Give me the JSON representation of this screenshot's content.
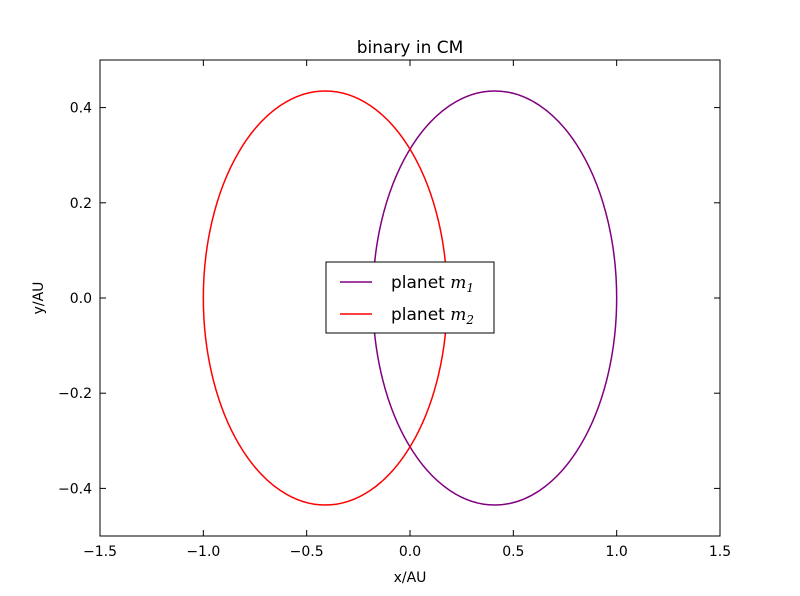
{
  "chart_data": {
    "type": "line",
    "title": "binary in CM",
    "xlabel": "x/AU",
    "ylabel": "y/AU",
    "xlim": [
      -1.5,
      1.5
    ],
    "ylim": [
      -0.5,
      0.5
    ],
    "xticks": [
      -1.5,
      -1.0,
      -0.5,
      0.0,
      0.5,
      1.0,
      1.5
    ],
    "xtick_labels": [
      "−1.5",
      "−1.0",
      "−0.5",
      "0.0",
      "0.5",
      "1.0",
      "1.5"
    ],
    "yticks": [
      -0.4,
      -0.2,
      0.0,
      0.2,
      0.4
    ],
    "ytick_labels": [
      "−0.4",
      "−0.2",
      "0.0",
      "0.2",
      "0.4"
    ],
    "grid": false,
    "legend_position": "center",
    "series": [
      {
        "name": "planet m1",
        "label_text": "planet ",
        "label_math": "m",
        "label_sub": "1",
        "color": "#800080",
        "shape": "ellipse",
        "center": [
          0.41,
          0.0
        ],
        "semi_axis_x": 0.59,
        "semi_axis_y": 0.435
      },
      {
        "name": "planet m2",
        "label_text": "planet ",
        "label_math": "m",
        "label_sub": "2",
        "color": "#ff0000",
        "shape": "ellipse",
        "center": [
          -0.41,
          0.0
        ],
        "semi_axis_x": 0.59,
        "semi_axis_y": 0.435
      }
    ]
  }
}
